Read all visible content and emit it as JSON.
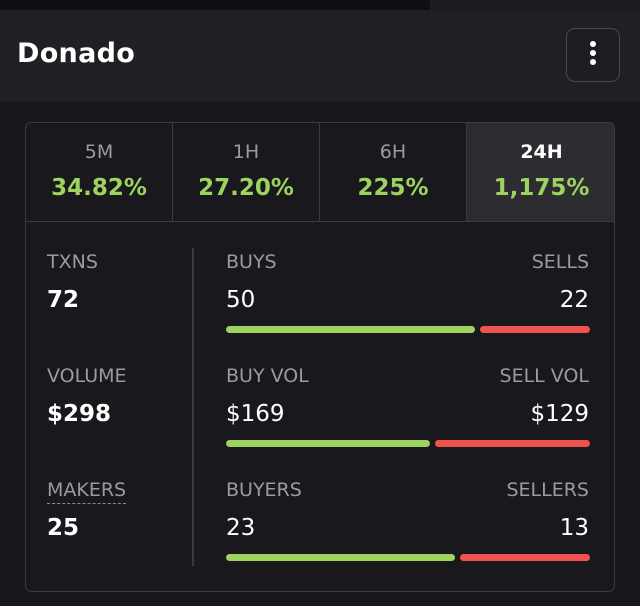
{
  "header": {
    "title": "Donado"
  },
  "timeframes": [
    {
      "label": "5M",
      "change": "34.82%"
    },
    {
      "label": "1H",
      "change": "27.20%"
    },
    {
      "label": "6H",
      "change": "225%"
    },
    {
      "label": "24H",
      "change": "1,175%"
    }
  ],
  "stats": [
    {
      "label": "TXNS",
      "value": 72,
      "left_label": "BUYS",
      "left": 50,
      "right_label": "SELLS",
      "right": 22
    },
    {
      "label": "VOLUME",
      "value": {
        "value": 298,
        "label": "$298"
      },
      "left_label": "BUY VOL",
      "left": {
        "value": 169,
        "label": "$169"
      },
      "right_label": "SELL VOL",
      "right": {
        "value": 129,
        "label": "$129"
      }
    },
    {
      "label": "MAKERS",
      "value": 25,
      "left_label": "BUYERS",
      "left": 23,
      "right_label": "SELLERS",
      "right": 13
    }
  ]
}
